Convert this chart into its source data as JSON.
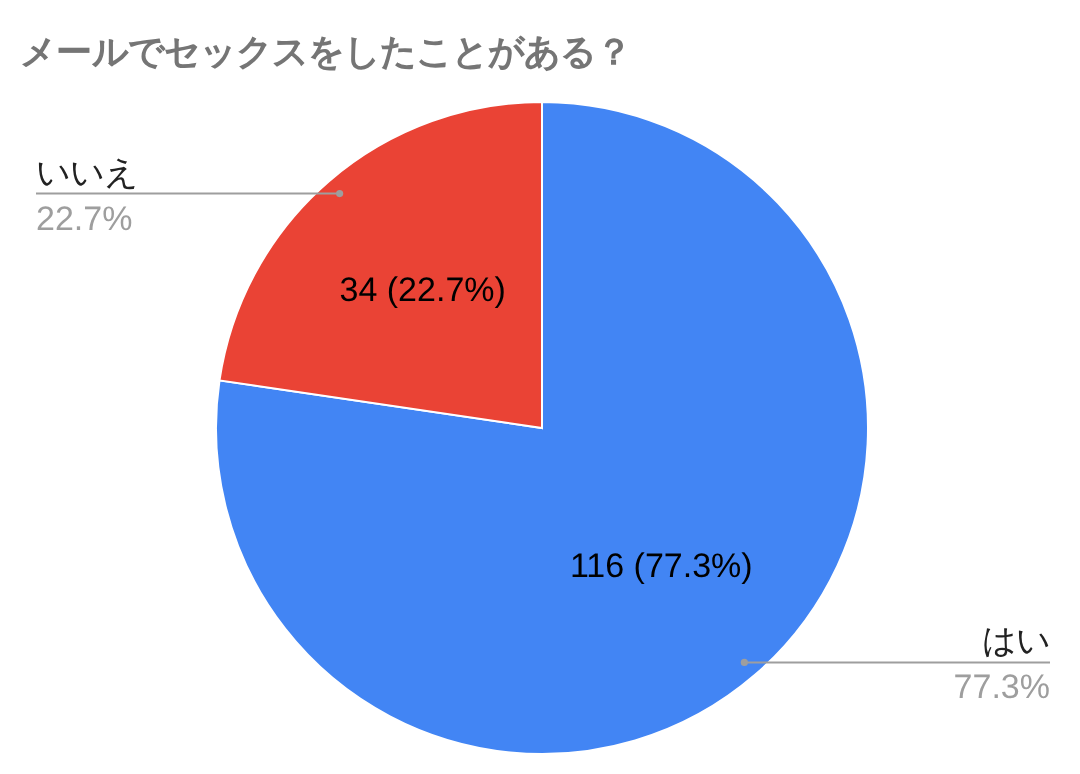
{
  "chart_data": {
    "type": "pie",
    "title": "メールでセックスをしたことがある？",
    "categories": [
      "はい",
      "いいえ"
    ],
    "values": [
      116,
      34
    ],
    "colors": [
      "#4285f4",
      "#ea4335"
    ],
    "value_labels": [
      "116 (77.3%)",
      "34 (22.7%)"
    ],
    "annotations": [
      "77.3%",
      "22.7%"
    ]
  }
}
